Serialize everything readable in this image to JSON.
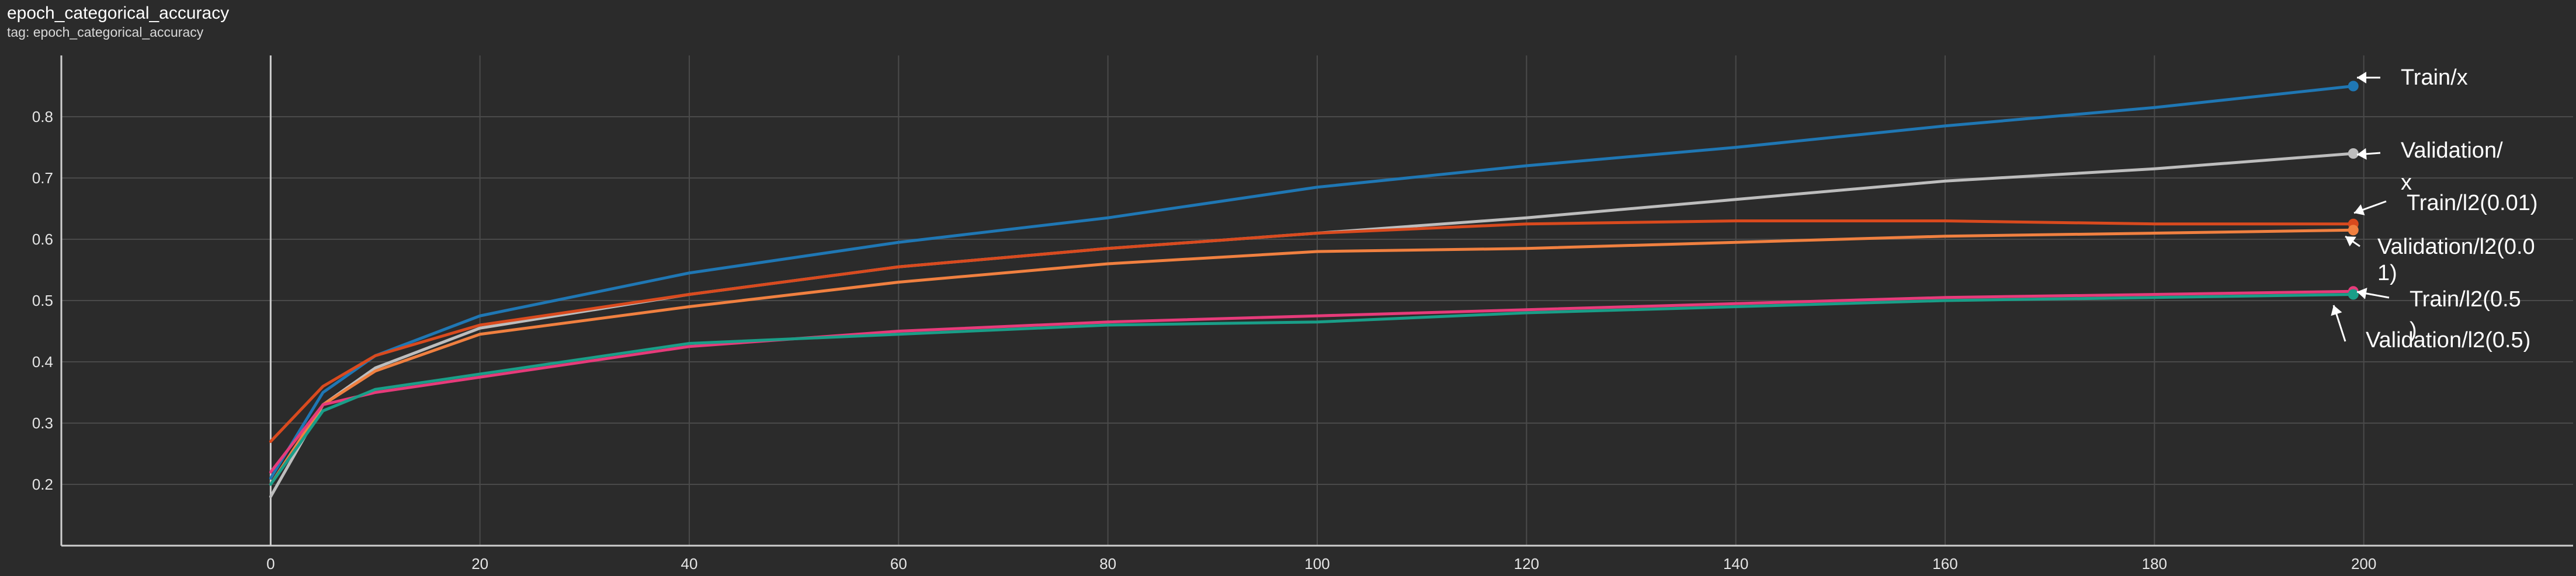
{
  "header": {
    "title": "epoch_categorical_accuracy",
    "subtitle": "tag: epoch_categorical_accuracy"
  },
  "chart_data": {
    "type": "line",
    "title": "epoch_categorical_accuracy",
    "subtitle": "tag: epoch_categorical_accuracy",
    "xlabel": "",
    "ylabel": "",
    "xlim": [
      -20,
      220
    ],
    "ylim": [
      0.1,
      0.9
    ],
    "x_ticks": [
      0,
      20,
      40,
      60,
      80,
      100,
      120,
      140,
      160,
      180,
      200
    ],
    "y_ticks": [
      0.2,
      0.3,
      0.4,
      0.5,
      0.6,
      0.7,
      0.8
    ],
    "grid": true,
    "legend": "annotations at right end of lines",
    "series": [
      {
        "name": "Train/x",
        "color": "#1f77b4",
        "x": [
          0,
          5,
          10,
          20,
          40,
          60,
          80,
          100,
          120,
          140,
          160,
          180,
          199
        ],
        "y": [
          0.21,
          0.35,
          0.41,
          0.475,
          0.545,
          0.595,
          0.635,
          0.685,
          0.72,
          0.75,
          0.785,
          0.815,
          0.85
        ]
      },
      {
        "name": "Validation/x",
        "color": "#bdbdbd",
        "x": [
          0,
          5,
          10,
          20,
          40,
          60,
          80,
          100,
          120,
          140,
          160,
          180,
          199
        ],
        "y": [
          0.18,
          0.33,
          0.39,
          0.455,
          0.51,
          0.555,
          0.585,
          0.61,
          0.635,
          0.665,
          0.695,
          0.715,
          0.74
        ]
      },
      {
        "name": "Train/l2(0.01)",
        "color": "#d94a1e",
        "x": [
          0,
          5,
          10,
          20,
          40,
          60,
          80,
          100,
          120,
          140,
          160,
          180,
          199
        ],
        "y": [
          0.27,
          0.36,
          0.41,
          0.46,
          0.51,
          0.555,
          0.585,
          0.61,
          0.625,
          0.63,
          0.63,
          0.625,
          0.625
        ]
      },
      {
        "name": "Validation/l2(0.01)",
        "color": "#f08040",
        "x": [
          0,
          5,
          10,
          20,
          40,
          60,
          80,
          100,
          120,
          140,
          160,
          180,
          199
        ],
        "y": [
          0.2,
          0.33,
          0.385,
          0.445,
          0.49,
          0.53,
          0.56,
          0.58,
          0.585,
          0.595,
          0.605,
          0.61,
          0.615
        ]
      },
      {
        "name": "Train/l2(0.5)",
        "color": "#e63b7a",
        "x": [
          0,
          5,
          10,
          20,
          40,
          60,
          80,
          100,
          120,
          140,
          160,
          180,
          199
        ],
        "y": [
          0.22,
          0.33,
          0.35,
          0.375,
          0.425,
          0.45,
          0.465,
          0.475,
          0.485,
          0.495,
          0.505,
          0.51,
          0.515
        ]
      },
      {
        "name": "Validation/l2(0.5)",
        "color": "#1a9e88",
        "x": [
          0,
          5,
          10,
          20,
          40,
          60,
          80,
          100,
          120,
          140,
          160,
          180,
          199
        ],
        "y": [
          0.2,
          0.32,
          0.355,
          0.38,
          0.43,
          0.445,
          0.46,
          0.465,
          0.48,
          0.49,
          0.5,
          0.505,
          0.51
        ]
      }
    ],
    "annotations": [
      {
        "text": "Train/x",
        "series": "Train/x"
      },
      {
        "text": "Validation/",
        "series": "Validation/x"
      },
      {
        "text": "x",
        "series": "Validation/x"
      },
      {
        "text": "Train/l2(0.01)",
        "series": "Train/l2(0.01)"
      },
      {
        "text": "Validation/l2(0.0",
        "series": "Validation/l2(0.01)"
      },
      {
        "text": "1)",
        "series": "Validation/l2(0.01)"
      },
      {
        "text": "Train/l2(0.5",
        "series": "Train/l2(0.5)"
      },
      {
        "text": ")",
        "series": "Train/l2(0.5)"
      },
      {
        "text": "Validation/l2(0.5)",
        "series": "Validation/l2(0.5)"
      }
    ]
  }
}
